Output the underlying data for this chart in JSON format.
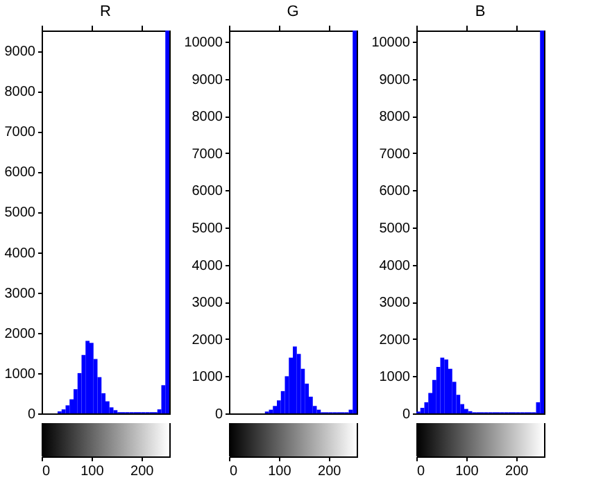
{
  "chart_data": [
    {
      "type": "histogram",
      "title": "R",
      "color": "#0000ff",
      "bins": [
        32,
        40,
        48,
        56,
        64,
        72,
        80,
        88,
        96,
        104,
        112,
        120,
        128,
        136,
        144,
        152,
        160,
        168,
        176,
        184,
        192,
        200,
        208,
        216,
        224,
        232,
        240,
        248,
        256
      ],
      "values": [
        50,
        100,
        200,
        350,
        600,
        1000,
        1450,
        1800,
        1750,
        1350,
        900,
        500,
        300,
        150,
        80,
        30,
        30,
        30,
        30,
        30,
        30,
        30,
        30,
        30,
        30,
        100,
        700,
        9500
      ],
      "xlim": [
        0,
        256
      ],
      "ylim": [
        0,
        9500
      ],
      "xticks": [
        0,
        100,
        200
      ],
      "yticks": [
        0,
        1000,
        2000,
        3000,
        4000,
        5000,
        6000,
        7000,
        8000,
        9000
      ],
      "grid": false
    },
    {
      "type": "histogram",
      "title": "G",
      "color": "#0000ff",
      "bins": [
        72,
        80,
        88,
        96,
        104,
        112,
        120,
        128,
        136,
        144,
        152,
        160,
        168,
        176,
        184,
        192,
        200,
        208,
        216,
        224,
        232,
        240,
        248,
        256
      ],
      "values": [
        50,
        100,
        200,
        350,
        600,
        1000,
        1500,
        1800,
        1600,
        1200,
        800,
        450,
        200,
        100,
        30,
        30,
        30,
        30,
        30,
        30,
        30,
        100,
        10300
      ],
      "xlim": [
        0,
        256
      ],
      "ylim": [
        0,
        10300
      ],
      "xticks": [
        0,
        100,
        200
      ],
      "yticks": [
        0,
        1000,
        2000,
        3000,
        4000,
        5000,
        6000,
        7000,
        8000,
        9000,
        10000
      ],
      "grid": false
    },
    {
      "type": "histogram",
      "title": "B",
      "color": "#0000ff",
      "bins": [
        0,
        8,
        16,
        24,
        32,
        40,
        48,
        56,
        64,
        72,
        80,
        88,
        96,
        104,
        112,
        120,
        128,
        136,
        144,
        152,
        160,
        168,
        176,
        184,
        192,
        200,
        208,
        216,
        224,
        232,
        240,
        248,
        256
      ],
      "values": [
        50,
        150,
        300,
        550,
        900,
        1250,
        1500,
        1450,
        1200,
        850,
        500,
        250,
        120,
        60,
        30,
        30,
        30,
        30,
        30,
        30,
        30,
        30,
        30,
        30,
        30,
        30,
        30,
        30,
        30,
        30,
        300,
        10300
      ],
      "xlim": [
        0,
        256
      ],
      "ylim": [
        0,
        10300
      ],
      "xticks": [
        0,
        100,
        200
      ],
      "yticks": [
        0,
        1000,
        2000,
        3000,
        4000,
        5000,
        6000,
        7000,
        8000,
        9000,
        10000
      ],
      "grid": false
    }
  ]
}
